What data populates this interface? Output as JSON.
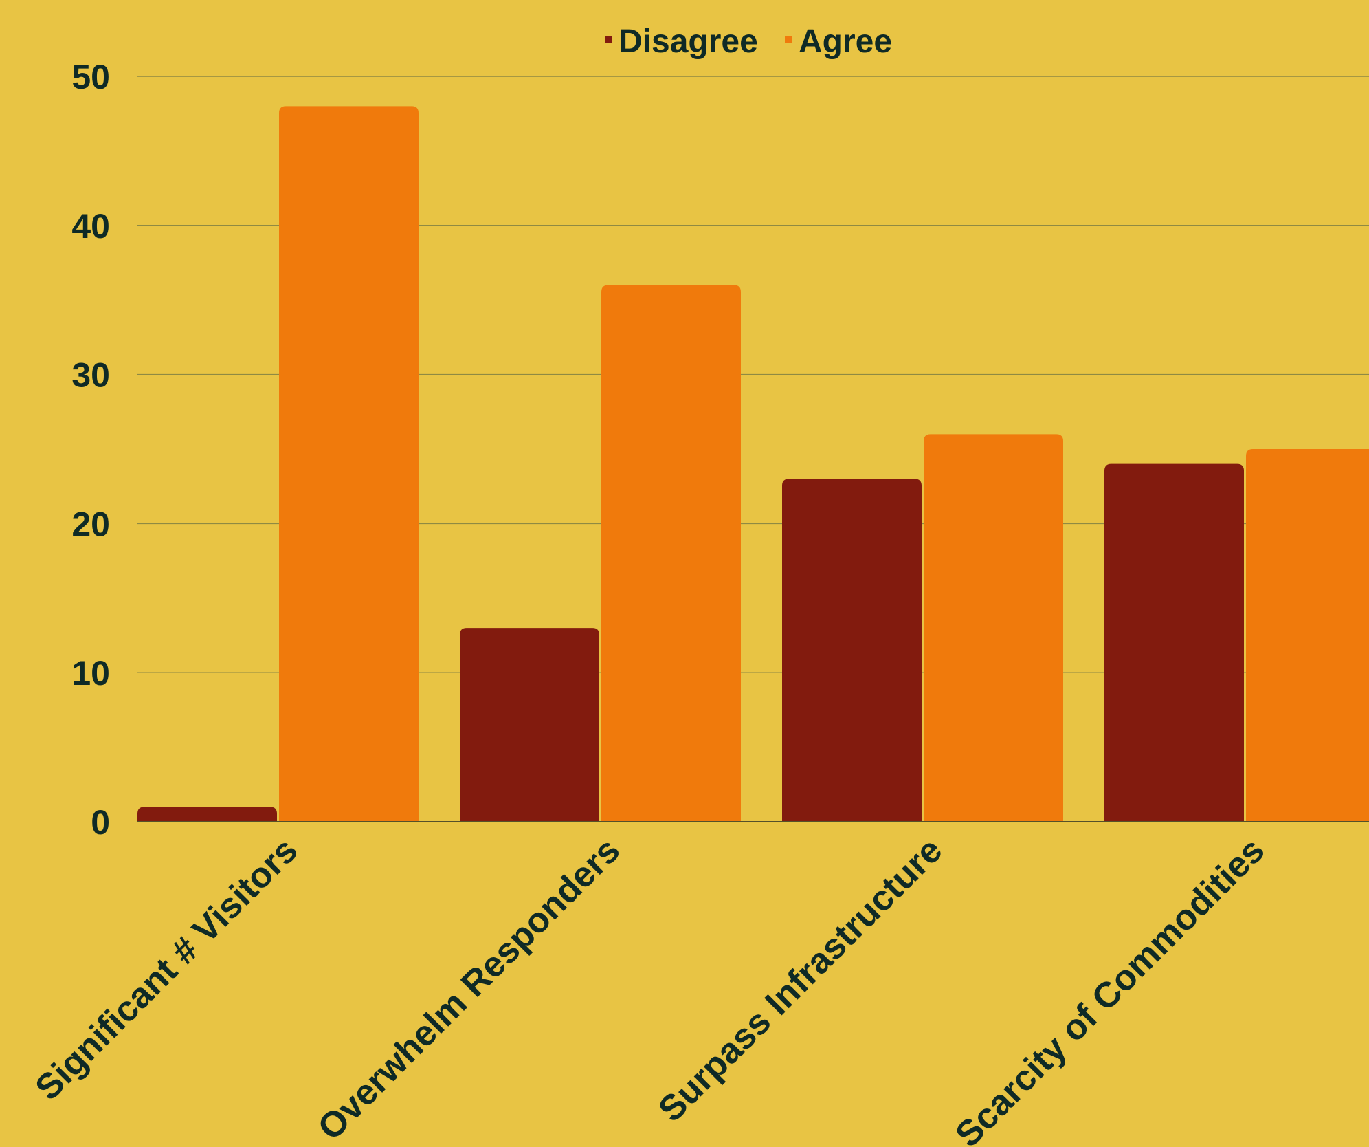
{
  "chart_data": {
    "type": "bar",
    "title": "",
    "xlabel": "",
    "ylabel": "",
    "categories": [
      "Significant # Visitors",
      "Overwhelm Responders",
      "Surpass Infrastructure",
      "Scarcity of Commodities"
    ],
    "series": [
      {
        "name": "Disagree",
        "values": [
          1,
          13,
          23,
          24
        ],
        "color": "#821b0e"
      },
      {
        "name": "Agree",
        "values": [
          48,
          36,
          26,
          25
        ],
        "color": "#f07a0c"
      }
    ],
    "ylim": [
      0,
      50
    ],
    "yticks": [
      0,
      10,
      20,
      30,
      40,
      50
    ],
    "grid": true,
    "legend_position": "top-center",
    "background_color": "#e8c444"
  }
}
